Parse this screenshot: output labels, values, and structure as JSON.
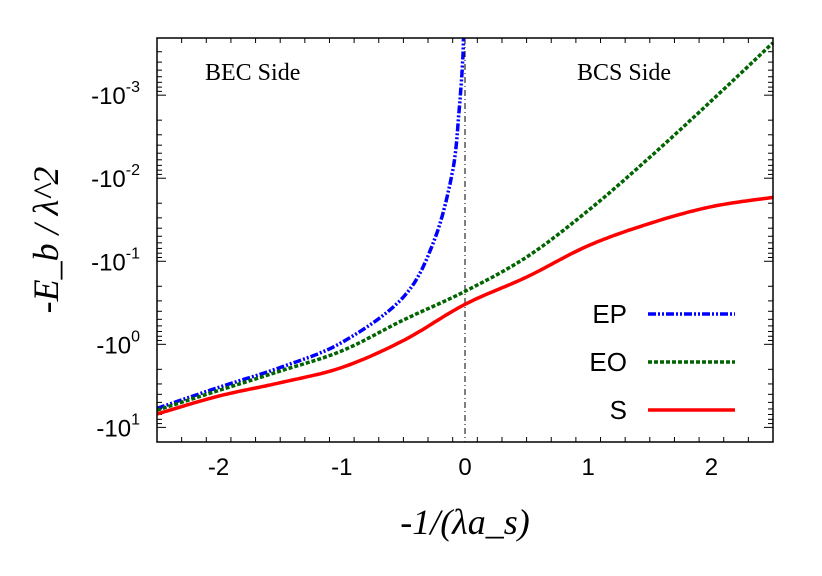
{
  "chart_data": {
    "type": "line",
    "xlabel": "-1/(λa_s)",
    "ylabel": "-E_b / λ^2",
    "xlim": [
      -2.5,
      2.5
    ],
    "ylim": [
      -0.000205,
      -15
    ],
    "yscale": "log (negative values, magnitude plotted)",
    "grid": false,
    "legend_position": "bottom-right",
    "x_ticks": [
      -2,
      -1,
      0,
      1,
      2
    ],
    "x_tick_labels": [
      "-2",
      "-1",
      "0",
      "1",
      "2"
    ],
    "y_ticks": [
      -0.001,
      -0.01,
      -0.1,
      -1,
      -10
    ],
    "y_tick_labels": [
      {
        "base": "-10",
        "exp": "-3"
      },
      {
        "base": "-10",
        "exp": "-2"
      },
      {
        "base": "-10",
        "exp": "-1"
      },
      {
        "base": "-10",
        "exp": "0"
      },
      {
        "base": "-10",
        "exp": "1"
      }
    ],
    "annotations": [
      "BEC Side",
      "BCS Side"
    ],
    "vertical_reference_line_x": 0,
    "series": [
      {
        "name": "EP",
        "color": "#0000ff",
        "style": "dash-dot-dot",
        "x": [
          -2.5,
          -2,
          -1.5,
          -1,
          -0.5,
          -0.25,
          -0.1,
          -0.05,
          -0.02,
          -0.012
        ],
        "y": [
          -5.9,
          -3.3,
          -1.9,
          -0.95,
          -0.27,
          -0.056,
          -0.0081,
          -0.00166,
          -0.00042,
          -0.0002
        ]
      },
      {
        "name": "EO",
        "color": "#006400",
        "style": "dotted",
        "x": [
          -2.5,
          -2,
          -1.5,
          -1,
          -0.5,
          0,
          0.5,
          1,
          1.5,
          2,
          2.5
        ],
        "y": [
          -6.2,
          -3.6,
          -2.1,
          -1.2,
          -0.51,
          -0.23,
          -0.089,
          -0.0245,
          -0.0056,
          -0.00117,
          -0.000234
        ]
      },
      {
        "name": "S",
        "color": "#ff0000",
        "style": "solid",
        "x": [
          -2.5,
          -2,
          -1.5,
          -1,
          -0.5,
          0,
          0.5,
          1,
          1.5,
          2,
          2.5
        ],
        "y": [
          -6.9,
          -4.2,
          -2.9,
          -1.9,
          -0.9,
          -0.33,
          -0.155,
          -0.065,
          -0.035,
          -0.022,
          -0.017
        ]
      }
    ]
  }
}
